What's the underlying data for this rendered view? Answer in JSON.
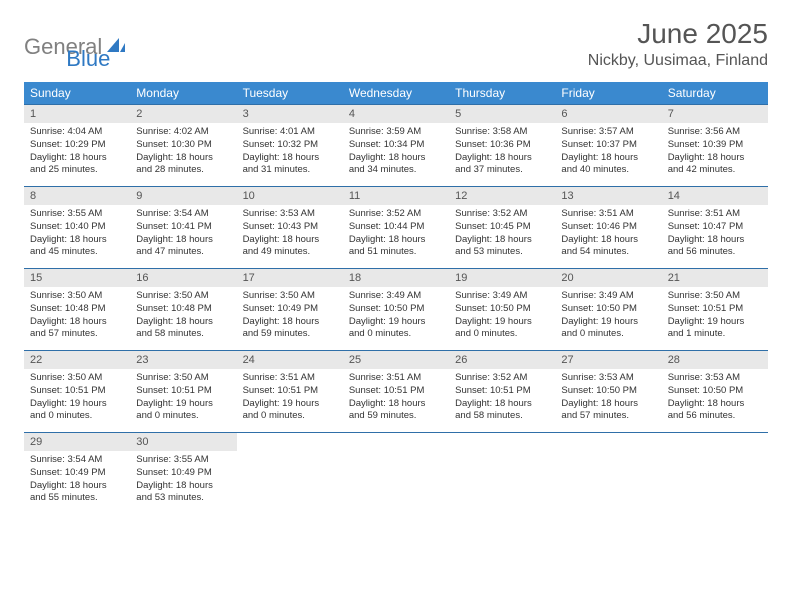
{
  "logo": {
    "text_gray": "General",
    "text_blue": "Blue",
    "icon_color": "#2f79c3"
  },
  "title": "June 2025",
  "location": "Nickby, Uusimaa, Finland",
  "colors": {
    "header_bg": "#3a89cf",
    "header_text": "#ffffff",
    "row_border": "#2f6fa8",
    "daynum_bg": "#e8e8e8",
    "text": "#333333"
  },
  "weekdays": [
    "Sunday",
    "Monday",
    "Tuesday",
    "Wednesday",
    "Thursday",
    "Friday",
    "Saturday"
  ],
  "days": [
    {
      "n": 1,
      "sunrise": "4:04 AM",
      "sunset": "10:29 PM",
      "dl": "18 hours and 25 minutes."
    },
    {
      "n": 2,
      "sunrise": "4:02 AM",
      "sunset": "10:30 PM",
      "dl": "18 hours and 28 minutes."
    },
    {
      "n": 3,
      "sunrise": "4:01 AM",
      "sunset": "10:32 PM",
      "dl": "18 hours and 31 minutes."
    },
    {
      "n": 4,
      "sunrise": "3:59 AM",
      "sunset": "10:34 PM",
      "dl": "18 hours and 34 minutes."
    },
    {
      "n": 5,
      "sunrise": "3:58 AM",
      "sunset": "10:36 PM",
      "dl": "18 hours and 37 minutes."
    },
    {
      "n": 6,
      "sunrise": "3:57 AM",
      "sunset": "10:37 PM",
      "dl": "18 hours and 40 minutes."
    },
    {
      "n": 7,
      "sunrise": "3:56 AM",
      "sunset": "10:39 PM",
      "dl": "18 hours and 42 minutes."
    },
    {
      "n": 8,
      "sunrise": "3:55 AM",
      "sunset": "10:40 PM",
      "dl": "18 hours and 45 minutes."
    },
    {
      "n": 9,
      "sunrise": "3:54 AM",
      "sunset": "10:41 PM",
      "dl": "18 hours and 47 minutes."
    },
    {
      "n": 10,
      "sunrise": "3:53 AM",
      "sunset": "10:43 PM",
      "dl": "18 hours and 49 minutes."
    },
    {
      "n": 11,
      "sunrise": "3:52 AM",
      "sunset": "10:44 PM",
      "dl": "18 hours and 51 minutes."
    },
    {
      "n": 12,
      "sunrise": "3:52 AM",
      "sunset": "10:45 PM",
      "dl": "18 hours and 53 minutes."
    },
    {
      "n": 13,
      "sunrise": "3:51 AM",
      "sunset": "10:46 PM",
      "dl": "18 hours and 54 minutes."
    },
    {
      "n": 14,
      "sunrise": "3:51 AM",
      "sunset": "10:47 PM",
      "dl": "18 hours and 56 minutes."
    },
    {
      "n": 15,
      "sunrise": "3:50 AM",
      "sunset": "10:48 PM",
      "dl": "18 hours and 57 minutes."
    },
    {
      "n": 16,
      "sunrise": "3:50 AM",
      "sunset": "10:48 PM",
      "dl": "18 hours and 58 minutes."
    },
    {
      "n": 17,
      "sunrise": "3:50 AM",
      "sunset": "10:49 PM",
      "dl": "18 hours and 59 minutes."
    },
    {
      "n": 18,
      "sunrise": "3:49 AM",
      "sunset": "10:50 PM",
      "dl": "19 hours and 0 minutes."
    },
    {
      "n": 19,
      "sunrise": "3:49 AM",
      "sunset": "10:50 PM",
      "dl": "19 hours and 0 minutes."
    },
    {
      "n": 20,
      "sunrise": "3:49 AM",
      "sunset": "10:50 PM",
      "dl": "19 hours and 0 minutes."
    },
    {
      "n": 21,
      "sunrise": "3:50 AM",
      "sunset": "10:51 PM",
      "dl": "19 hours and 1 minute."
    },
    {
      "n": 22,
      "sunrise": "3:50 AM",
      "sunset": "10:51 PM",
      "dl": "19 hours and 0 minutes."
    },
    {
      "n": 23,
      "sunrise": "3:50 AM",
      "sunset": "10:51 PM",
      "dl": "19 hours and 0 minutes."
    },
    {
      "n": 24,
      "sunrise": "3:51 AM",
      "sunset": "10:51 PM",
      "dl": "19 hours and 0 minutes."
    },
    {
      "n": 25,
      "sunrise": "3:51 AM",
      "sunset": "10:51 PM",
      "dl": "18 hours and 59 minutes."
    },
    {
      "n": 26,
      "sunrise": "3:52 AM",
      "sunset": "10:51 PM",
      "dl": "18 hours and 58 minutes."
    },
    {
      "n": 27,
      "sunrise": "3:53 AM",
      "sunset": "10:50 PM",
      "dl": "18 hours and 57 minutes."
    },
    {
      "n": 28,
      "sunrise": "3:53 AM",
      "sunset": "10:50 PM",
      "dl": "18 hours and 56 minutes."
    },
    {
      "n": 29,
      "sunrise": "3:54 AM",
      "sunset": "10:49 PM",
      "dl": "18 hours and 55 minutes."
    },
    {
      "n": 30,
      "sunrise": "3:55 AM",
      "sunset": "10:49 PM",
      "dl": "18 hours and 53 minutes."
    }
  ],
  "labels": {
    "sunrise": "Sunrise:",
    "sunset": "Sunset:",
    "daylight": "Daylight:"
  },
  "start_weekday": 0,
  "cells_per_row": 7
}
